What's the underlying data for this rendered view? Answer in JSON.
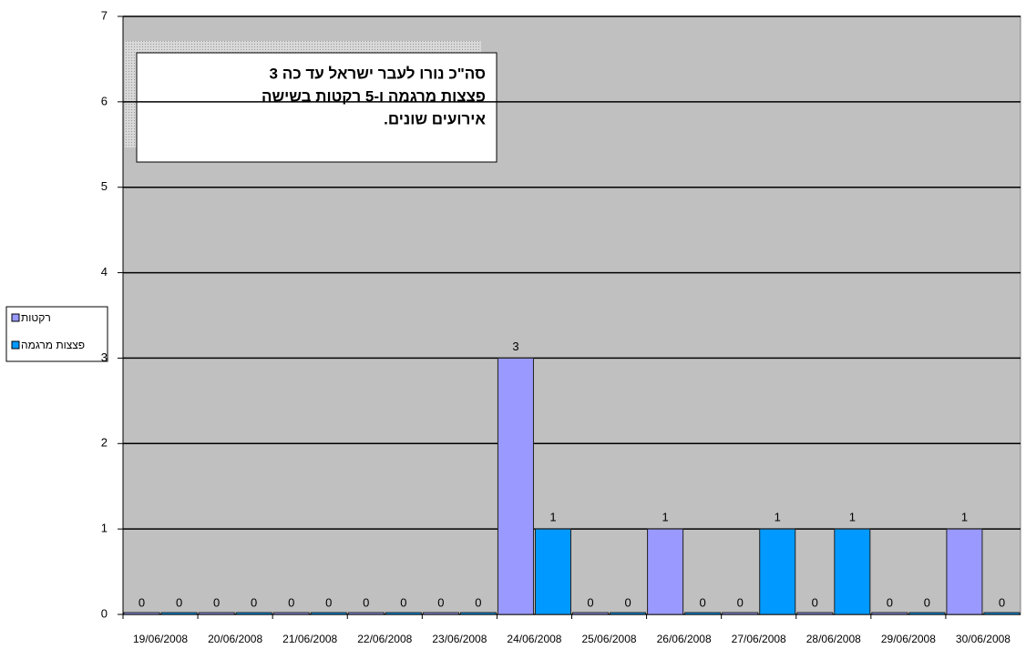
{
  "chart_data": {
    "type": "bar",
    "categories": [
      "19/06/2008",
      "20/06/2008",
      "21/06/2008",
      "22/06/2008",
      "23/06/2008",
      "24/06/2008",
      "25/06/2008",
      "26/06/2008",
      "27/06/2008",
      "28/06/2008",
      "29/06/2008",
      "30/06/2008"
    ],
    "series": [
      {
        "name": "רקטות",
        "color": "#9999ff",
        "values": [
          0,
          0,
          0,
          0,
          0,
          3,
          0,
          1,
          0,
          0,
          0,
          1
        ]
      },
      {
        "name": "פצצות מרגמה",
        "color": "#0099ff",
        "values": [
          0,
          0,
          0,
          0,
          0,
          1,
          0,
          0,
          1,
          1,
          0,
          0
        ]
      }
    ],
    "ylim": [
      0,
      7
    ],
    "yticks": [
      0,
      1,
      2,
      3,
      4,
      5,
      6,
      7
    ],
    "grid": true,
    "legend": "left",
    "annotation": [
      "סה\"כ נורו לעבר ישראל עד כה 3",
      "פצצות מרגמה ו-5 רקטות בשישה",
      "אירועים שונים."
    ]
  }
}
